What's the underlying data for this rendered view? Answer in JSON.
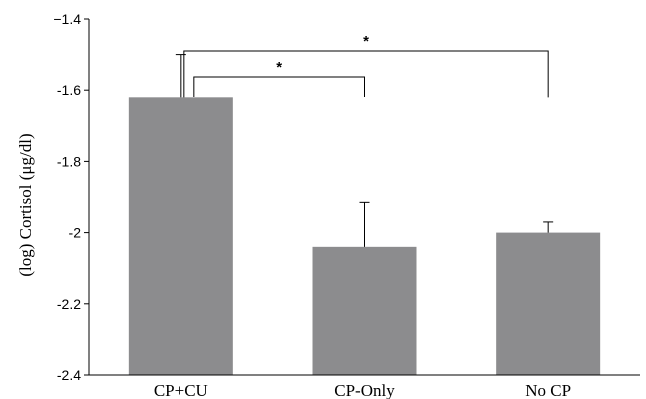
{
  "chart_data": {
    "type": "bar",
    "categories": [
      "CP+CU",
      "CP-Only",
      "No CP"
    ],
    "values": [
      -1.62,
      -2.04,
      -2.0
    ],
    "error_upper": [
      -1.5,
      -1.915,
      -1.97
    ],
    "xlabel": "",
    "ylabel": "(log) Cortisol (μg/dl)",
    "ylim": [
      -2.4,
      -1.4
    ],
    "yticks": [
      -1.4,
      -1.6,
      -1.8,
      -2,
      -2.2,
      -2.4
    ],
    "ytick_labels": [
      "−1.4",
      "-1.6",
      "-1.8",
      "-2",
      "-2.2",
      "-2.4"
    ],
    "grid": false,
    "bar_color": "#8c8c8e",
    "significance": [
      {
        "from": "CP+CU",
        "to": "CP-Only",
        "label": "*"
      },
      {
        "from": "CP+CU",
        "to": "No CP",
        "label": "*"
      }
    ]
  }
}
